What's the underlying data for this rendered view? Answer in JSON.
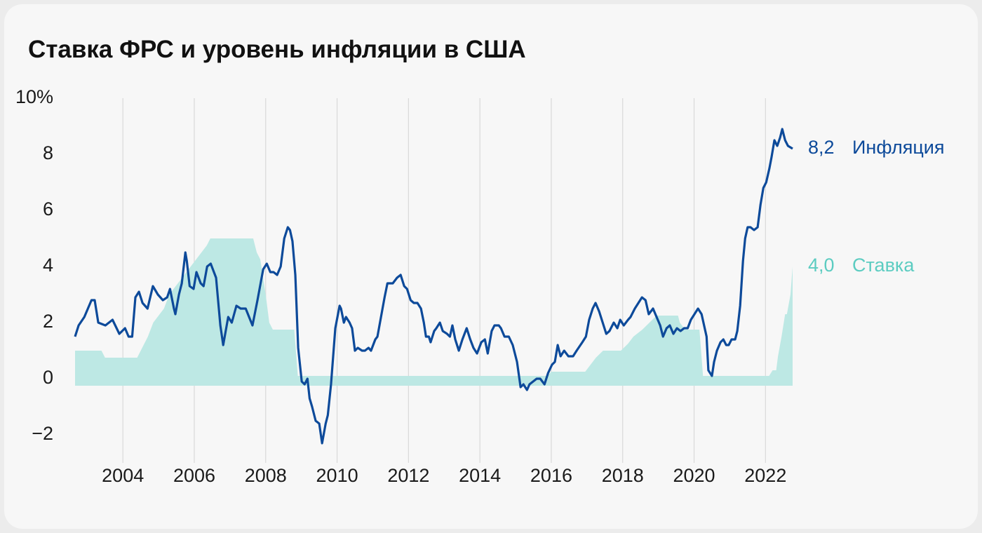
{
  "chart_data": {
    "type": "line-area",
    "title": "Ставка ФРС и уровень инфляции в США",
    "xlim": [
      2002.66,
      2022.76
    ],
    "xticks": [
      2004,
      2006,
      2008,
      2010,
      2012,
      2014,
      2016,
      2018,
      2020,
      2022
    ],
    "ylim": [
      -3,
      10
    ],
    "yticks": [
      {
        "value": 10,
        "label": "10%"
      },
      8,
      6,
      4,
      2,
      0,
      {
        "value": -2,
        "label": "−2"
      }
    ],
    "grid": "x",
    "series": [
      {
        "name": "Инфляция",
        "color": "#0d4a9a",
        "kind": "line",
        "x": [
          2002.66,
          2002.76,
          2002.92,
          2003.12,
          2003.21,
          2003.31,
          2003.51,
          2003.71,
          2003.9,
          2004.06,
          2004.16,
          2004.26,
          2004.35,
          2004.45,
          2004.55,
          2004.69,
          2004.84,
          2004.98,
          2005.12,
          2005.24,
          2005.32,
          2005.43,
          2005.47,
          2005.57,
          2005.65,
          2005.75,
          2005.79,
          2005.87,
          2005.98,
          2006.06,
          2006.18,
          2006.26,
          2006.36,
          2006.46,
          2006.61,
          2006.73,
          2006.81,
          2006.95,
          2007.05,
          2007.18,
          2007.3,
          2007.44,
          2007.63,
          2007.77,
          2007.93,
          2008.03,
          2008.13,
          2008.22,
          2008.32,
          2008.42,
          2008.52,
          2008.62,
          2008.68,
          2008.75,
          2008.83,
          2008.91,
          2009.01,
          2009.09,
          2009.17,
          2009.23,
          2009.3,
          2009.4,
          2009.5,
          2009.58,
          2009.68,
          2009.74,
          2009.83,
          2009.95,
          2010.07,
          2010.11,
          2010.19,
          2010.25,
          2010.35,
          2010.42,
          2010.5,
          2010.58,
          2010.7,
          2010.78,
          2010.88,
          2010.95,
          2011.07,
          2011.13,
          2011.23,
          2011.33,
          2011.41,
          2011.49,
          2011.56,
          2011.68,
          2011.78,
          2011.88,
          2011.96,
          2012.06,
          2012.15,
          2012.25,
          2012.35,
          2012.43,
          2012.49,
          2012.57,
          2012.62,
          2012.72,
          2012.78,
          2012.88,
          2012.96,
          2013.08,
          2013.16,
          2013.23,
          2013.31,
          2013.41,
          2013.51,
          2013.63,
          2013.73,
          2013.82,
          2013.92,
          2014.04,
          2014.14,
          2014.22,
          2014.33,
          2014.41,
          2014.53,
          2014.59,
          2014.69,
          2014.81,
          2014.92,
          2015.04,
          2015.14,
          2015.22,
          2015.32,
          2015.39,
          2015.49,
          2015.59,
          2015.69,
          2015.81,
          2015.91,
          2016.02,
          2016.1,
          2016.18,
          2016.26,
          2016.36,
          2016.48,
          2016.61,
          2016.71,
          2016.87,
          2016.97,
          2017.06,
          2017.16,
          2017.24,
          2017.34,
          2017.44,
          2017.54,
          2017.63,
          2017.75,
          2017.85,
          2017.93,
          2018.03,
          2018.15,
          2018.22,
          2018.34,
          2018.44,
          2018.54,
          2018.64,
          2018.73,
          2018.85,
          2018.95,
          2019.05,
          2019.13,
          2019.23,
          2019.32,
          2019.42,
          2019.52,
          2019.62,
          2019.72,
          2019.82,
          2019.91,
          2020.01,
          2020.11,
          2020.21,
          2020.35,
          2020.4,
          2020.5,
          2020.56,
          2020.64,
          2020.74,
          2020.82,
          2020.9,
          2020.97,
          2021.05,
          2021.15,
          2021.21,
          2021.29,
          2021.37,
          2021.43,
          2021.5,
          2021.58,
          2021.68,
          2021.78,
          2021.86,
          2021.94,
          2022.02,
          2022.11,
          2022.17,
          2022.25,
          2022.33,
          2022.41,
          2022.47,
          2022.55,
          2022.63,
          2022.76
        ],
        "values": [
          1.5,
          1.9,
          2.2,
          2.8,
          2.8,
          2.0,
          1.9,
          2.1,
          1.6,
          1.8,
          1.5,
          1.5,
          2.9,
          3.1,
          2.7,
          2.5,
          3.3,
          3.0,
          2.8,
          2.9,
          3.2,
          2.5,
          2.3,
          3.0,
          3.4,
          4.5,
          4.2,
          3.3,
          3.2,
          3.8,
          3.4,
          3.3,
          4.0,
          4.1,
          3.6,
          1.9,
          1.2,
          2.2,
          2.0,
          2.6,
          2.5,
          2.5,
          1.9,
          2.8,
          3.9,
          4.1,
          3.8,
          3.8,
          3.7,
          4.0,
          5.0,
          5.4,
          5.3,
          4.9,
          3.7,
          1.1,
          -0.1,
          -0.2,
          0.0,
          -0.7,
          -1.0,
          -1.5,
          -1.6,
          -2.3,
          -1.6,
          -1.3,
          -0.2,
          1.8,
          2.6,
          2.5,
          2.0,
          2.2,
          2.0,
          1.8,
          1.0,
          1.1,
          1.0,
          1.0,
          1.1,
          1.0,
          1.4,
          1.5,
          2.2,
          2.9,
          3.4,
          3.4,
          3.4,
          3.6,
          3.7,
          3.3,
          3.2,
          2.8,
          2.7,
          2.7,
          2.5,
          2.0,
          1.5,
          1.5,
          1.3,
          1.7,
          1.8,
          2.0,
          1.7,
          1.6,
          1.5,
          1.9,
          1.4,
          1.0,
          1.4,
          1.8,
          1.4,
          1.1,
          0.9,
          1.3,
          1.4,
          0.9,
          1.7,
          1.9,
          1.9,
          1.8,
          1.5,
          1.5,
          1.2,
          0.6,
          -0.3,
          -0.2,
          -0.4,
          -0.2,
          -0.1,
          0.0,
          0.0,
          -0.2,
          0.2,
          0.5,
          0.6,
          1.2,
          0.8,
          1.0,
          0.8,
          0.8,
          1.0,
          1.3,
          1.5,
          2.1,
          2.5,
          2.7,
          2.4,
          2.0,
          1.6,
          1.7,
          2.0,
          1.8,
          2.1,
          1.9,
          2.1,
          2.2,
          2.5,
          2.7,
          2.9,
          2.8,
          2.3,
          2.5,
          2.2,
          1.9,
          1.5,
          1.8,
          1.9,
          1.6,
          1.8,
          1.7,
          1.8,
          1.8,
          2.1,
          2.3,
          2.5,
          2.3,
          1.5,
          0.3,
          0.1,
          0.6,
          1.0,
          1.3,
          1.4,
          1.2,
          1.2,
          1.4,
          1.4,
          1.7,
          2.6,
          4.2,
          5.0,
          5.4,
          5.4,
          5.3,
          5.4,
          6.2,
          6.8,
          7.0,
          7.5,
          7.9,
          8.5,
          8.3,
          8.6,
          8.9,
          8.5,
          8.3,
          8.2
        ],
        "value_labels": [
          null,
          null,
          null,
          null,
          null,
          null,
          null,
          null,
          null,
          null,
          null,
          null,
          null,
          null,
          null,
          null,
          null,
          null,
          null,
          null,
          null,
          null,
          null,
          null,
          null,
          null,
          null,
          null,
          null,
          null,
          null,
          null,
          null,
          null,
          null,
          null,
          null,
          null,
          null,
          null,
          null,
          null,
          null,
          null,
          null,
          null,
          null,
          null,
          null,
          null,
          null,
          null,
          null,
          null,
          null,
          null,
          null,
          null,
          null,
          null,
          null,
          null,
          null,
          null,
          null,
          null,
          null,
          null,
          null,
          null,
          null,
          null,
          null,
          null,
          null,
          null,
          null,
          null,
          null,
          null,
          null,
          null,
          null,
          null,
          null,
          null,
          null,
          null,
          null,
          null,
          null,
          null,
          null,
          null,
          null,
          null,
          null,
          null,
          null,
          null,
          null,
          null,
          null,
          null,
          null,
          null,
          null,
          null,
          null,
          null,
          null,
          null,
          null,
          null,
          null,
          null,
          null,
          null,
          null,
          null,
          null,
          null,
          null,
          null,
          null,
          null,
          null,
          null,
          null,
          null,
          null,
          null,
          null,
          null,
          null,
          null,
          null,
          null,
          null,
          null,
          null,
          null,
          null,
          null,
          null,
          null,
          null,
          null,
          null,
          null,
          null,
          null,
          null,
          null,
          null,
          null,
          null,
          null,
          null,
          null,
          null,
          null,
          null,
          null,
          null,
          null,
          null,
          null,
          null,
          null,
          null,
          null,
          null,
          null,
          null,
          null,
          null,
          null,
          null,
          null,
          null,
          null,
          null,
          null,
          null,
          null,
          null,
          null,
          null,
          null,
          null,
          null,
          null,
          null,
          null,
          null,
          null,
          null,
          null,
          null,
          null,
          null,
          null,
          null,
          null,
          null,
          "8,2"
        ]
      },
      {
        "name": "Ставка",
        "color": "#bde8e4",
        "label_color": "#5cccc1",
        "kind": "area",
        "x": [
          2002.66,
          2003.4,
          2003.5,
          2004.4,
          2004.5,
          2004.6,
          2004.7,
          2004.85,
          2005.0,
          2005.15,
          2005.3,
          2005.45,
          2005.6,
          2005.75,
          2005.9,
          2006.05,
          2006.2,
          2006.35,
          2006.45,
          2007.65,
          2007.75,
          2007.85,
          2008.0,
          2008.1,
          2008.2,
          2008.8,
          2008.9,
          2015.9,
          2016.0,
          2016.95,
          2017.1,
          2017.25,
          2017.45,
          2017.95,
          2018.15,
          2018.3,
          2018.55,
          2018.75,
          2018.95,
          2019.55,
          2019.6,
          2019.75,
          2020.15,
          2020.25,
          2022.1,
          2022.2,
          2022.3,
          2022.35,
          2022.45,
          2022.55,
          2022.6,
          2022.7,
          2022.76
        ],
        "values": [
          1.0,
          1.0,
          0.75,
          0.75,
          1.0,
          1.25,
          1.5,
          2.0,
          2.25,
          2.5,
          3.0,
          3.25,
          3.5,
          3.75,
          4.0,
          4.25,
          4.5,
          4.75,
          5.0,
          5.0,
          4.5,
          4.25,
          3.0,
          2.0,
          1.75,
          1.75,
          0.1,
          0.1,
          0.25,
          0.25,
          0.5,
          0.75,
          1.0,
          1.0,
          1.25,
          1.5,
          1.75,
          2.0,
          2.25,
          2.25,
          2.0,
          1.75,
          1.75,
          0.1,
          0.1,
          0.3,
          0.3,
          0.8,
          1.5,
          2.3,
          2.3,
          3.0,
          4.0
        ],
        "value_labels": [
          null,
          null,
          null,
          null,
          null,
          null,
          null,
          null,
          null,
          null,
          null,
          null,
          null,
          null,
          null,
          null,
          null,
          null,
          null,
          null,
          null,
          null,
          null,
          null,
          null,
          null,
          null,
          null,
          null,
          null,
          null,
          null,
          null,
          null,
          null,
          null,
          null,
          null,
          null,
          null,
          null,
          null,
          null,
          null,
          null,
          null,
          null,
          null,
          null,
          null,
          null,
          null,
          "4,0"
        ]
      }
    ]
  }
}
